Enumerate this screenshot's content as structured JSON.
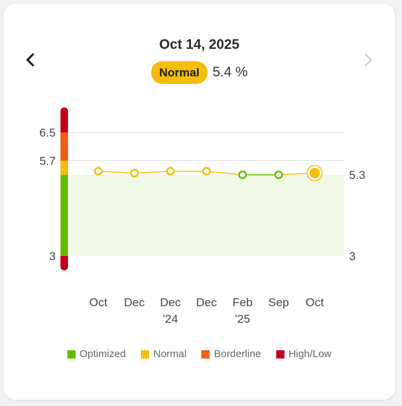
{
  "header": {
    "date": "Oct 14, 2025",
    "status_badge": "Normal",
    "reading": "5.4 %"
  },
  "nav": {
    "prev_icon": "chevron-left-icon",
    "next_icon": "chevron-right-icon",
    "next_enabled": false
  },
  "colors": {
    "optimized": "#66bb00",
    "normal": "#f5bd0c",
    "borderline": "#f25c19",
    "high_low": "#c4001c",
    "target_band": "#f0f8e6",
    "line_normal": "#f5bd0c",
    "line_optimized": "#66bb00"
  },
  "chart_data": {
    "type": "line",
    "categories": [
      "Oct",
      "Dec",
      "Dec\n'24",
      "Dec",
      "Feb\n'25",
      "Sep",
      "Oct"
    ],
    "values": [
      5.4,
      5.35,
      5.4,
      5.4,
      5.3,
      5.3,
      5.35
    ],
    "point_status": [
      "normal",
      "normal",
      "normal",
      "normal",
      "optimized",
      "optimized",
      "normal"
    ],
    "highlighted_index": 6,
    "ylim": [
      2.7,
      7.1
    ],
    "y_ticks_left": [
      3,
      5.7,
      6.5
    ],
    "y_ticks_right": [
      3,
      5.3
    ],
    "target_band": [
      3,
      5.3
    ],
    "grid": true,
    "range_bar": [
      {
        "status": "high_low",
        "from": 6.5,
        "to": 7.1
      },
      {
        "status": "borderline",
        "from": 5.7,
        "to": 6.5
      },
      {
        "status": "normal",
        "from": 5.3,
        "to": 5.7
      },
      {
        "status": "optimized",
        "from": 3,
        "to": 5.3
      },
      {
        "status": "high_low",
        "from": 2.7,
        "to": 3
      }
    ],
    "legend": [
      {
        "key": "optimized",
        "label": "Optimized"
      },
      {
        "key": "normal",
        "label": "Normal"
      },
      {
        "key": "borderline",
        "label": "Borderline"
      },
      {
        "key": "high_low",
        "label": "High/Low"
      }
    ],
    "legend_position": "bottom"
  }
}
